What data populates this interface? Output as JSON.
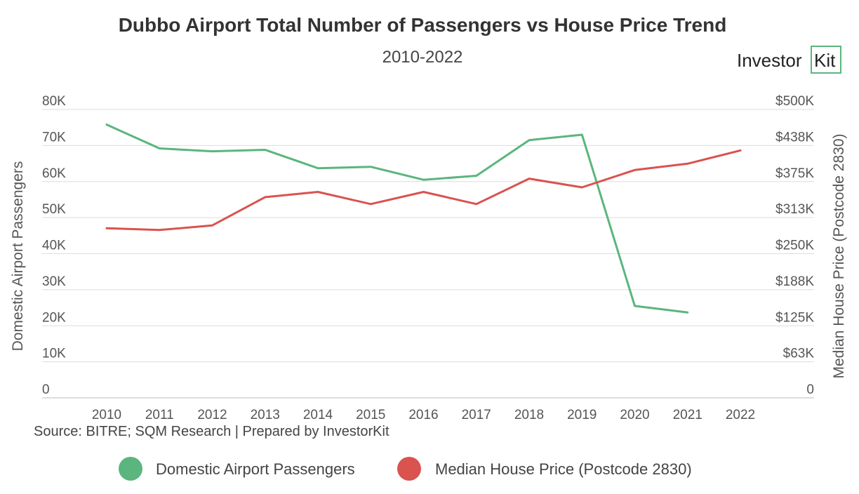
{
  "chart_data": {
    "type": "line",
    "title": "Dubbo Airport Total Number of Passengers vs House Price Trend",
    "subtitle": "2010-2022",
    "categories": [
      "2010",
      "2011",
      "2012",
      "2013",
      "2014",
      "2015",
      "2016",
      "2017",
      "2018",
      "2019",
      "2020",
      "2021",
      "2022"
    ],
    "series": [
      {
        "name": "Domestic Airport Passengers",
        "axis": "left",
        "color": "#5bb57e",
        "values": [
          75800,
          69200,
          68400,
          68800,
          63700,
          64100,
          60500,
          61600,
          71500,
          73000,
          25500,
          23700,
          null
        ]
      },
      {
        "name": "Median House Price (Postcode 2830)",
        "axis": "right",
        "color": "#d9534f",
        "values": [
          294000,
          291000,
          299000,
          348000,
          357000,
          336000,
          357000,
          336000,
          380000,
          365000,
          395000,
          406000,
          429000
        ]
      }
    ],
    "ylabel": "Domestic Airport Passengers",
    "y2label": "Median House Price (Postcode 2830)",
    "ylim": [
      0,
      80000
    ],
    "y2lim": [
      0,
      500000
    ],
    "yticks": [
      "0",
      "10K",
      "20K",
      "30K",
      "40K",
      "50K",
      "60K",
      "70K",
      "80K"
    ],
    "y2ticks": [
      "0",
      "$63K",
      "$125K",
      "$188K",
      "$250K",
      "$313K",
      "$375K",
      "$438K",
      "$500K"
    ],
    "grid": true,
    "legend_position": "bottom",
    "source": "Source: BITRE; SQM Research | Prepared by InvestorKit"
  },
  "logo": {
    "text_main": "Investor",
    "text_box": "Kit",
    "color": "#5bb57e"
  }
}
